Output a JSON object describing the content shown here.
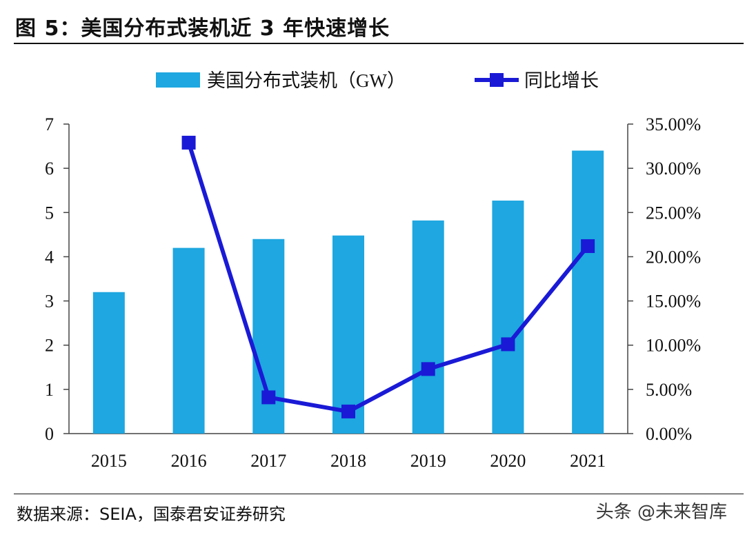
{
  "header": {
    "title": "图 5：美国分布式装机近 3 年快速增长"
  },
  "footer": {
    "source": "数据来源：SEIA，国泰君安证券研究",
    "watermark": "头条 @未来智库"
  },
  "colors": {
    "bar": "#1ea7e0",
    "line": "#1a1ad6",
    "axis": "#444444"
  },
  "chart_data": {
    "type": "bar",
    "title": "美国分布式装机近 3 年快速增长",
    "categories": [
      "2015",
      "2016",
      "2017",
      "2018",
      "2019",
      "2020",
      "2021"
    ],
    "series": [
      {
        "name": "美国分布式装机（GW）",
        "type": "bar",
        "axis": "left",
        "values": [
          3.2,
          4.2,
          4.4,
          4.48,
          4.82,
          5.27,
          6.4
        ]
      },
      {
        "name": "同比增长",
        "type": "line",
        "axis": "right",
        "values": [
          null,
          32.9,
          4.1,
          2.5,
          7.3,
          10.1,
          21.2
        ]
      }
    ],
    "left_axis": {
      "ylim": [
        0,
        7
      ],
      "ticks": [
        "0",
        "1",
        "2",
        "3",
        "4",
        "5",
        "6",
        "7"
      ]
    },
    "right_axis": {
      "ylim": [
        0,
        35
      ],
      "ticks": [
        "0.00%",
        "5.00%",
        "10.00%",
        "15.00%",
        "20.00%",
        "25.00%",
        "30.00%",
        "35.00%"
      ]
    },
    "legend": {
      "placement": "top-center"
    },
    "grid": false
  }
}
